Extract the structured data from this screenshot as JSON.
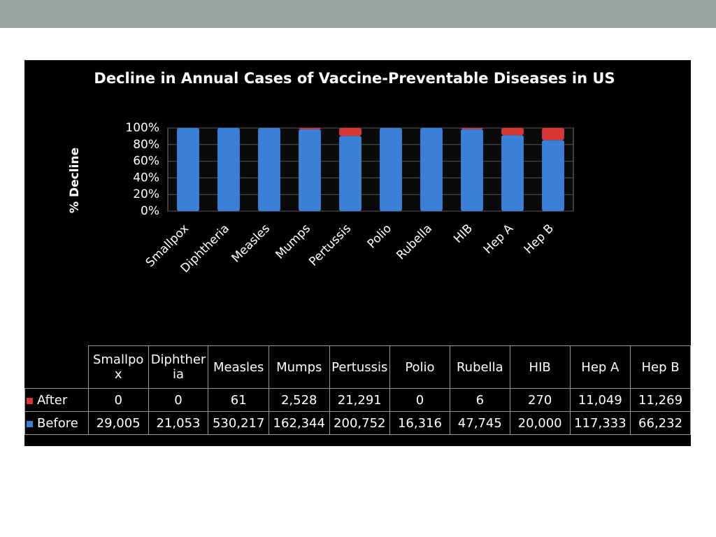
{
  "chart_data": {
    "type": "bar",
    "stacked": "percent",
    "title": "Decline in Annual Cases of Vaccine-Preventable Diseases in US",
    "y_label": "% Decline",
    "categories": [
      "Smallpox",
      "Diphtheria",
      "Measles",
      "Mumps",
      "Pertussis",
      "Polio",
      "Rubella",
      "HIB",
      "Hep A",
      "Hep B"
    ],
    "series": [
      {
        "name": "After",
        "color": "#d93535",
        "values": [
          0,
          0,
          61,
          2528,
          21291,
          0,
          6,
          270,
          11049,
          11269
        ],
        "value_labels": [
          "0",
          "0",
          "61",
          "2,528",
          "21,291",
          "0",
          "6",
          "270",
          "11,049",
          "11,269"
        ]
      },
      {
        "name": "Before",
        "color": "#3b7fd6",
        "values": [
          29005,
          21053,
          530217,
          162344,
          200752,
          16316,
          47745,
          20000,
          117333,
          66232
        ],
        "value_labels": [
          "29,005",
          "21,053",
          "530,217",
          "162,344",
          "200,752",
          "16,316",
          "47,745",
          "20,000",
          "117,333",
          "66,232"
        ]
      }
    ],
    "ylim": [
      0,
      100
    ],
    "yticks": [
      {
        "value": 0,
        "label": "0%"
      },
      {
        "value": 20,
        "label": "20%"
      },
      {
        "value": 40,
        "label": "40%"
      },
      {
        "value": 60,
        "label": "60%"
      },
      {
        "value": 80,
        "label": "80%"
      },
      {
        "value": 100,
        "label": "100%"
      }
    ],
    "grid": true
  }
}
